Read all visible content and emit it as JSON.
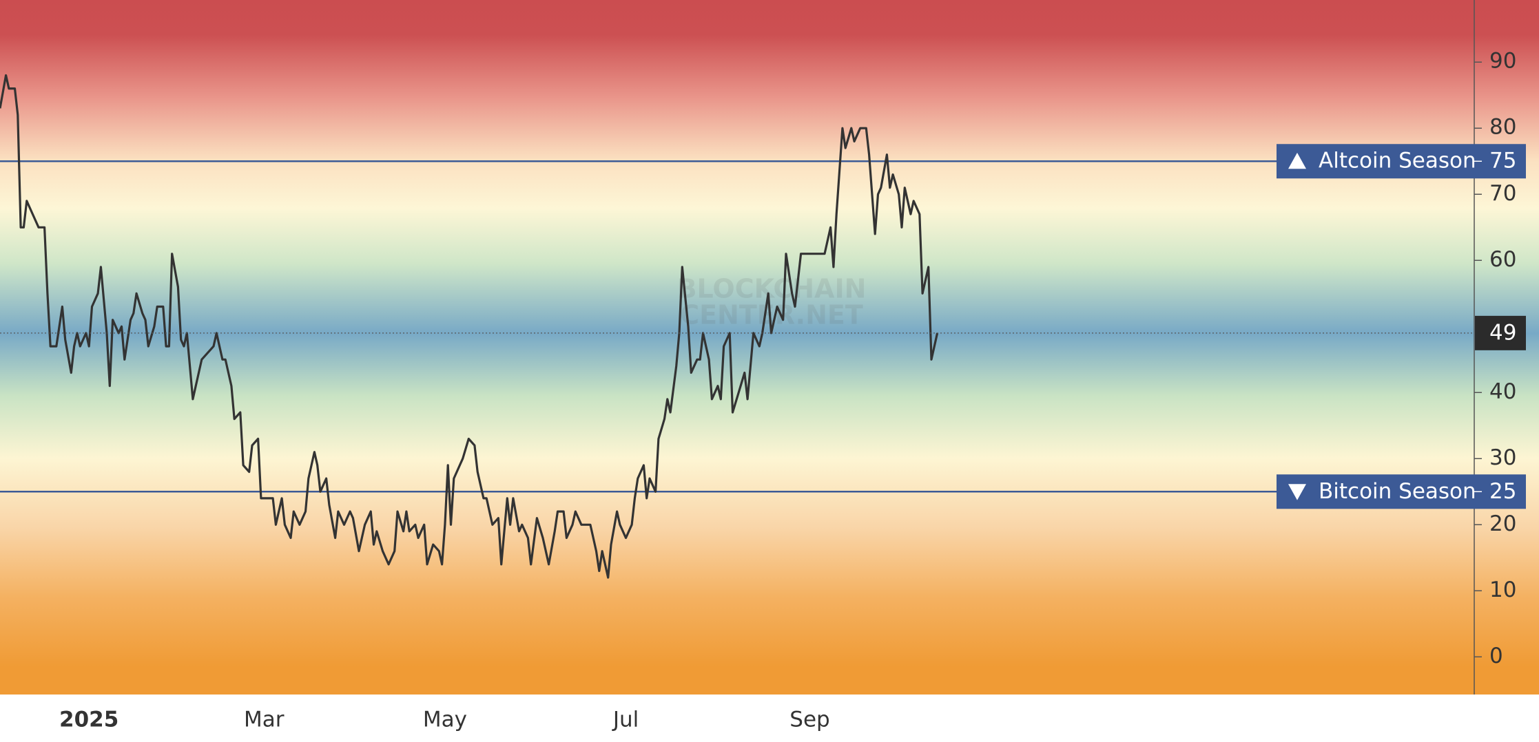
{
  "chart_data": {
    "type": "line",
    "color": "#333333",
    "x": [
      0,
      2,
      3,
      5,
      6,
      7,
      8,
      9,
      11,
      13,
      15,
      16,
      17,
      19,
      21,
      22,
      24,
      25,
      26,
      27,
      29,
      30,
      31,
      33,
      34,
      36,
      37,
      38,
      40,
      41,
      42,
      44,
      45,
      46,
      48,
      49,
      50,
      52,
      53,
      55,
      56,
      57,
      58,
      60,
      61,
      62,
      63,
      65,
      68,
      70,
      72,
      73,
      75,
      76,
      78,
      79,
      81,
      82,
      84,
      85,
      87,
      88,
      90,
      92,
      93,
      95,
      96,
      98,
      99,
      101,
      103,
      104,
      106,
      107,
      108,
      110,
      111,
      113,
      114,
      116,
      118,
      119,
      121,
      123,
      125,
      126,
      127,
      129,
      131,
      133,
      134,
      136,
      137,
      138,
      140,
      141,
      143,
      144,
      146,
      148,
      149,
      150,
      151,
      152,
      153,
      155,
      156,
      158,
      160,
      161,
      163,
      164,
      166,
      168,
      169,
      171,
      172,
      173,
      175,
      176,
      178,
      179,
      181,
      183,
      185,
      187,
      188,
      190,
      191,
      193,
      194,
      196,
      198,
      199,
      201,
      202,
      203,
      205,
      206,
      208,
      209,
      211,
      213,
      214,
      215,
      217,
      218,
      219,
      221,
      222,
      224,
      225,
      226,
      228,
      229,
      230,
      232,
      233,
      235,
      236,
      237,
      239,
      240,
      242,
      243,
      244,
      246,
      247,
      249,
      251,
      252,
      254,
      256,
      257,
      259,
      260,
      262,
      264,
      265,
      267,
      268,
      270,
      272,
      273,
      275,
      278,
      280,
      281,
      282,
      284,
      285,
      287,
      288,
      290,
      292,
      293,
      295,
      296,
      297,
      299,
      300,
      301,
      303,
      304,
      305,
      307,
      308,
      310,
      311,
      313,
      314,
      316
    ],
    "values": [
      83,
      88,
      86,
      86,
      82,
      65,
      65,
      69,
      67,
      65,
      65,
      55,
      47,
      47,
      53,
      48,
      43,
      47,
      49,
      47,
      49,
      47,
      53,
      55,
      59,
      49,
      41,
      51,
      49,
      50,
      45,
      51,
      52,
      55,
      52,
      51,
      47,
      50,
      53,
      53,
      47,
      47,
      61,
      56,
      48,
      47,
      49,
      39,
      45,
      46,
      47,
      49,
      45,
      45,
      41,
      36,
      37,
      29,
      28,
      32,
      33,
      24,
      24,
      24,
      20,
      24,
      20,
      18,
      22,
      20,
      22,
      27,
      31,
      29,
      25,
      27,
      23,
      18,
      22,
      20,
      22,
      21,
      16,
      20,
      22,
      17,
      19,
      16,
      14,
      16,
      22,
      19,
      22,
      19,
      20,
      18,
      20,
      14,
      17,
      16,
      14,
      20,
      29,
      20,
      27,
      29,
      30,
      33,
      32,
      28,
      24,
      24,
      20,
      21,
      14,
      24,
      20,
      24,
      19,
      20,
      18,
      14,
      21,
      18,
      14,
      19,
      22,
      22,
      18,
      20,
      22,
      20,
      20,
      20,
      16,
      13,
      16,
      12,
      17,
      22,
      20,
      18,
      20,
      24,
      27,
      29,
      24,
      27,
      25,
      33,
      36,
      39,
      37,
      44,
      49,
      59,
      50,
      43,
      45,
      45,
      49,
      45,
      39,
      41,
      39,
      47,
      49,
      37,
      40,
      43,
      39,
      49,
      47,
      49,
      55,
      49,
      53,
      51,
      61,
      55,
      53,
      61,
      61,
      61,
      61,
      61,
      65,
      59,
      67,
      80,
      77,
      80,
      78,
      80,
      80,
      76,
      64,
      70,
      71,
      76,
      71,
      73,
      70,
      65,
      71,
      67,
      69,
      67,
      55,
      59,
      45,
      49
    ],
    "xlim": [
      0,
      497
    ],
    "xticks": [
      {
        "value": 30,
        "label": "2025"
      },
      {
        "value": 89,
        "label": "Mar"
      },
      {
        "value": 150,
        "label": "May"
      },
      {
        "value": 211,
        "label": "Jul"
      },
      {
        "value": 273,
        "label": "Sep"
      }
    ],
    "ylim": [
      -5.7,
      99.4
    ],
    "yticks": [
      0,
      10,
      20,
      30,
      40,
      60,
      70,
      80,
      90
    ],
    "reference_lines": [
      {
        "label": "Altcoin Season",
        "value": 75,
        "direction": "up",
        "color": "#3c5a96"
      },
      {
        "label": "Bitcoin Season",
        "value": 25,
        "direction": "down",
        "color": "#3c5a96"
      }
    ],
    "watermark": [
      "BLOCKCHAIN",
      "CENTER.NET"
    ]
  }
}
